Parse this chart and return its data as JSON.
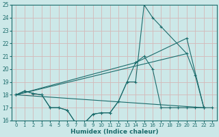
{
  "xlabel": "Humidex (Indice chaleur)",
  "xlim": [
    -0.5,
    23.5
  ],
  "ylim": [
    16,
    25
  ],
  "yticks": [
    16,
    17,
    18,
    19,
    20,
    21,
    22,
    23,
    24,
    25
  ],
  "xticks": [
    0,
    1,
    2,
    3,
    4,
    5,
    6,
    7,
    8,
    9,
    10,
    11,
    12,
    13,
    14,
    15,
    16,
    17,
    18,
    19,
    20,
    21,
    22,
    23
  ],
  "bg_color": "#cce8e8",
  "line_color": "#1a6b6b",
  "grid_color": "#b8d8d8",
  "line1_x": [
    0,
    1,
    2,
    3,
    4,
    5,
    6,
    7,
    8,
    9,
    10,
    11,
    12,
    13,
    14,
    15,
    16,
    17,
    20,
    21,
    22
  ],
  "line1_y": [
    18.0,
    18.3,
    18.1,
    18.0,
    17.0,
    17.0,
    16.8,
    15.8,
    15.8,
    16.5,
    16.6,
    16.6,
    17.5,
    19.0,
    19.0,
    25.0,
    24.0,
    23.3,
    21.2,
    19.5,
    17.0
  ],
  "line2_x": [
    0,
    1,
    2,
    3,
    4,
    5,
    6,
    7,
    8,
    9,
    10,
    11,
    12,
    13,
    14,
    15,
    16,
    17,
    18,
    19,
    20,
    21,
    22,
    23
  ],
  "line2_y": [
    18.0,
    18.3,
    18.1,
    18.0,
    17.0,
    17.0,
    16.8,
    15.8,
    15.8,
    16.5,
    16.6,
    16.6,
    17.5,
    19.0,
    20.5,
    21.0,
    20.0,
    17.0,
    17.0,
    17.0,
    17.0,
    17.0,
    17.0,
    17.0
  ],
  "line3_x": [
    0,
    22
  ],
  "line3_y": [
    18.0,
    17.0
  ],
  "line4_x": [
    0,
    14,
    20,
    22
  ],
  "line4_y": [
    18.0,
    20.5,
    22.4,
    17.0
  ],
  "line5_x": [
    0,
    20
  ],
  "line5_y": [
    18.0,
    21.2
  ]
}
